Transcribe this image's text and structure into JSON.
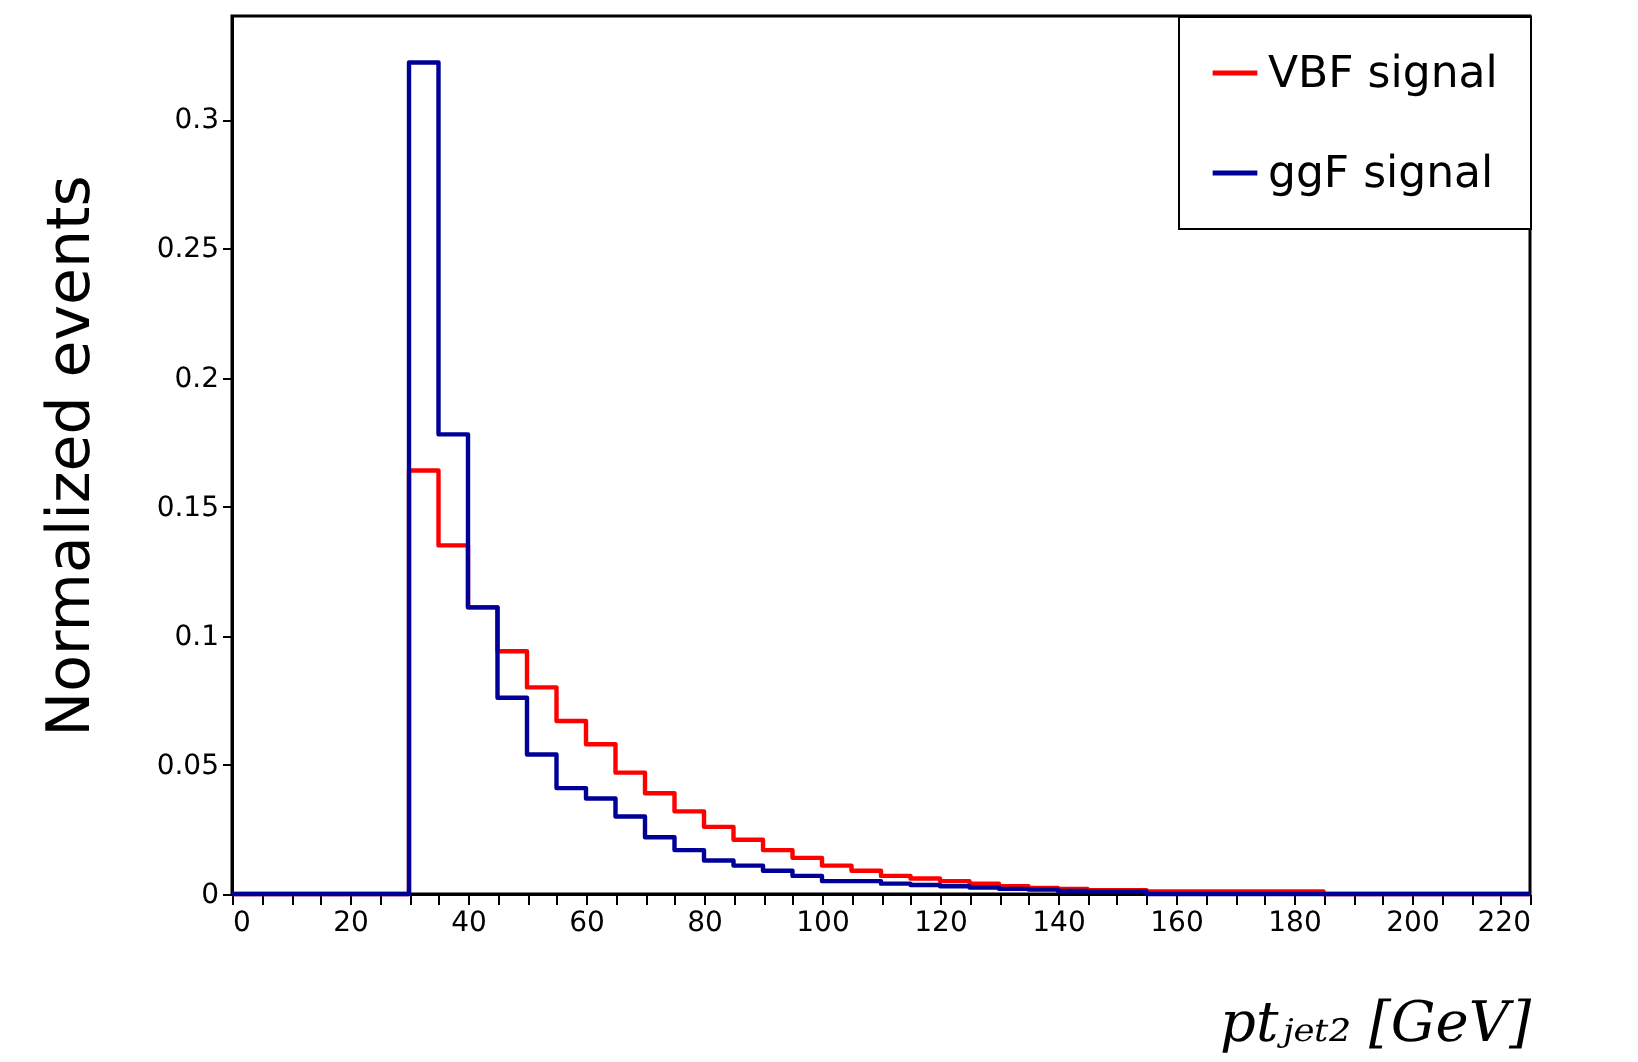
{
  "chart_data": {
    "type": "histogram",
    "xlabel": "ptⱼₑₜ₂ [GeV]",
    "ylabel": "Normalized events",
    "bins": [
      0,
      5,
      10,
      15,
      20,
      25,
      30,
      35,
      40,
      45,
      50,
      55,
      60,
      65,
      70,
      75,
      80,
      85,
      90,
      95,
      100,
      105,
      110,
      115,
      120,
      125,
      130,
      135,
      140,
      145,
      150,
      155,
      160,
      165,
      170,
      175,
      180,
      185,
      190,
      195,
      200,
      205,
      210,
      215,
      220
    ],
    "series": [
      {
        "name": "VBF signal",
        "color": "#ff0000",
        "values": [
          0,
          0,
          0,
          0,
          0,
          0,
          0.164,
          0.135,
          0.111,
          0.094,
          0.08,
          0.067,
          0.058,
          0.047,
          0.039,
          0.032,
          0.026,
          0.021,
          0.017,
          0.014,
          0.011,
          0.009,
          0.007,
          0.006,
          0.005,
          0.004,
          0.003,
          0.0023,
          0.002,
          0.0015,
          0.0015,
          0.001,
          0.001,
          0.001,
          0.001,
          0.001,
          0.001,
          0,
          0,
          0,
          0,
          0,
          0,
          0
        ]
      },
      {
        "name": "ggF signal",
        "color": "#000099",
        "values": [
          0,
          0,
          0,
          0,
          0,
          0,
          0.322,
          0.178,
          0.111,
          0.076,
          0.054,
          0.041,
          0.037,
          0.03,
          0.022,
          0.017,
          0.013,
          0.011,
          0.009,
          0.007,
          0.005,
          0.005,
          0.004,
          0.0035,
          0.003,
          0.0025,
          0.002,
          0.0017,
          0.0012,
          0.001,
          0.001,
          0,
          0,
          0,
          0,
          0,
          0,
          0,
          0,
          0,
          0,
          0,
          0,
          0
        ]
      }
    ],
    "xlim": [
      0,
      220
    ],
    "ylim": [
      0,
      0.34
    ],
    "xticks": [
      0,
      {
        "value": 5,
        "label": null
      },
      {
        "value": 10,
        "label": null
      },
      {
        "value": 15,
        "label": null
      },
      20,
      {
        "value": 25,
        "label": null
      },
      {
        "value": 30,
        "label": null
      },
      {
        "value": 35,
        "label": null
      },
      40,
      {
        "value": 45,
        "label": null
      },
      {
        "value": 50,
        "label": null
      },
      {
        "value": 55,
        "label": null
      },
      60,
      {
        "value": 65,
        "label": null
      },
      {
        "value": 70,
        "label": null
      },
      {
        "value": 75,
        "label": null
      },
      80,
      {
        "value": 85,
        "label": null
      },
      {
        "value": 90,
        "label": null
      },
      {
        "value": 95,
        "label": null
      },
      100,
      {
        "value": 105,
        "label": null
      },
      {
        "value": 110,
        "label": null
      },
      {
        "value": 115,
        "label": null
      },
      120,
      {
        "value": 125,
        "label": null
      },
      {
        "value": 130,
        "label": null
      },
      {
        "value": 135,
        "label": null
      },
      140,
      {
        "value": 145,
        "label": null
      },
      {
        "value": 150,
        "label": null
      },
      {
        "value": 155,
        "label": null
      },
      160,
      {
        "value": 165,
        "label": null
      },
      {
        "value": 170,
        "label": null
      },
      {
        "value": 175,
        "label": null
      },
      180,
      {
        "value": 185,
        "label": null
      },
      {
        "value": 190,
        "label": null
      },
      {
        "value": 195,
        "label": null
      },
      200,
      {
        "value": 205,
        "label": null
      },
      {
        "value": 210,
        "label": null
      },
      {
        "value": 215,
        "label": null
      },
      220
    ],
    "yticks": [
      0,
      0.05,
      0.1,
      0.15,
      0.2,
      0.25,
      0.3
    ],
    "grid": false,
    "legend": "top right",
    "line_style": "solid"
  }
}
